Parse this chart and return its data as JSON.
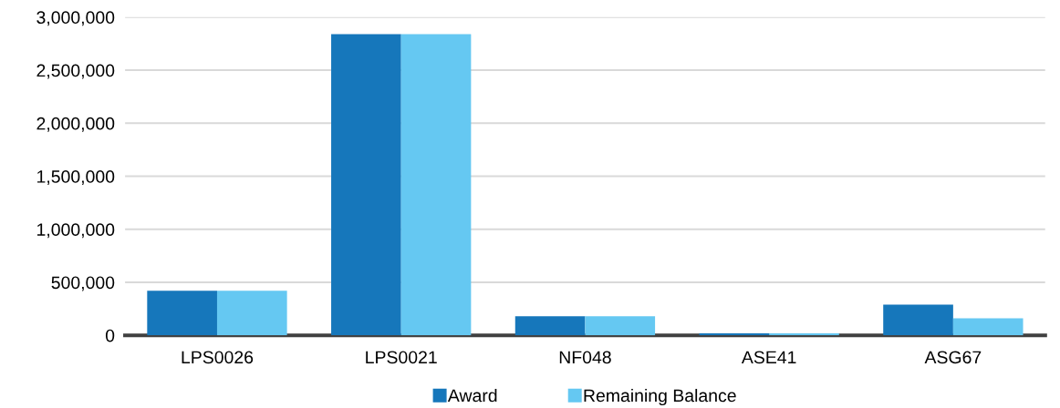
{
  "chart_data": {
    "type": "bar",
    "categories": [
      "LPS0026",
      "LPS0021",
      "NF048",
      "ASE41",
      "ASG67"
    ],
    "series": [
      {
        "name": "Award",
        "color": "#1677bb",
        "values": [
          420000,
          2840000,
          180000,
          20000,
          290000
        ]
      },
      {
        "name": "Remaining Balance",
        "color": "#65c8f2",
        "values": [
          420000,
          2840000,
          180000,
          20000,
          160000
        ]
      }
    ],
    "ylim": [
      0,
      3000000
    ],
    "yticks": [
      {
        "value": 0,
        "label": "0"
      },
      {
        "value": 500000,
        "label": "500,000"
      },
      {
        "value": 1000000,
        "label": "1,000,000"
      },
      {
        "value": 1500000,
        "label": "1,500,000"
      },
      {
        "value": 2000000,
        "label": "2,000,000"
      },
      {
        "value": 2500000,
        "label": "2,500,000"
      },
      {
        "value": 3000000,
        "label": "3,000,000"
      }
    ],
    "grid": "y",
    "legend": "bottom"
  }
}
